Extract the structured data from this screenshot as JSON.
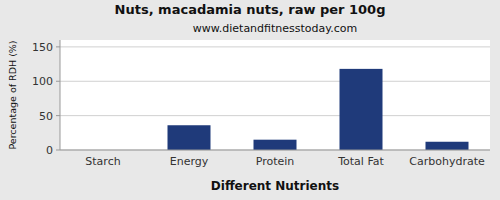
{
  "chart_data": {
    "type": "bar",
    "title": "Nuts, macadamia nuts, raw per 100g",
    "subtitle": "www.dietandfitnesstoday.com",
    "xlabel": "Different Nutrients",
    "ylabel": "Percentage of RDH (%)",
    "categories": [
      "Starch",
      "Energy",
      "Protein",
      "Total Fat",
      "Carbohydrate"
    ],
    "values": [
      0,
      36,
      15,
      118,
      12
    ],
    "color": "#1f3a7a",
    "ylim": [
      0,
      160
    ],
    "yticks": [
      0,
      50,
      100,
      150
    ],
    "grid": true
  }
}
